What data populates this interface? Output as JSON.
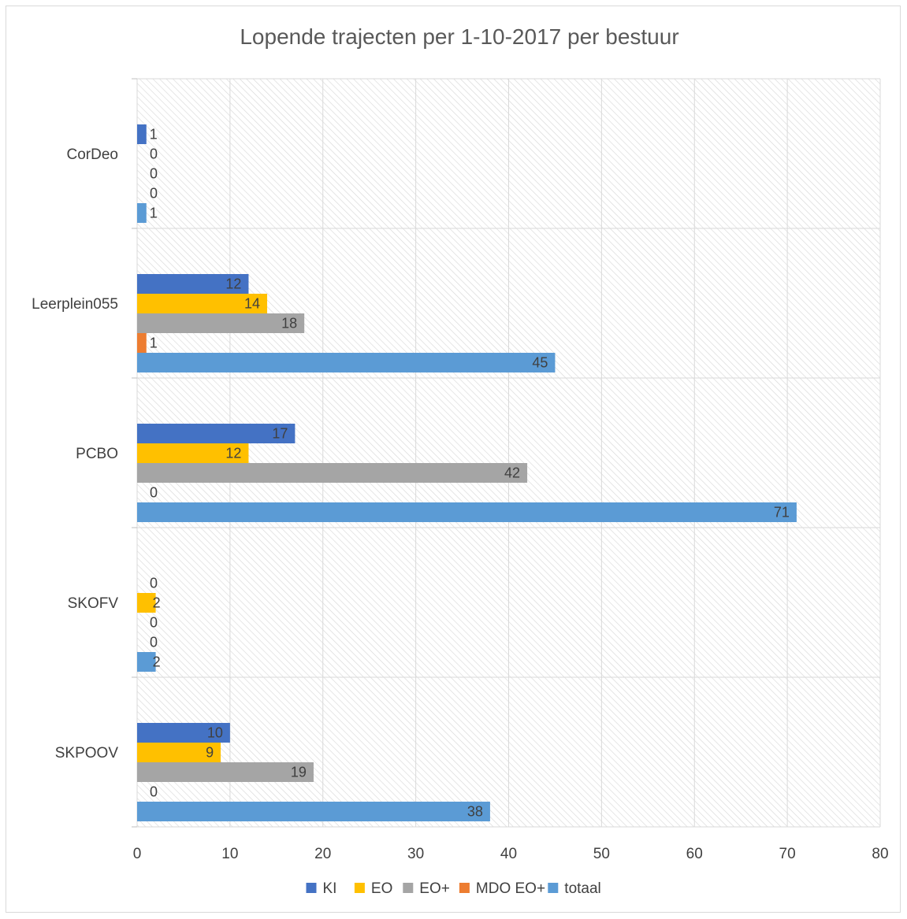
{
  "chart_data": {
    "type": "bar",
    "orientation": "horizontal",
    "title": "Lopende trajecten per 1-10-2017 per bestuur",
    "categories": [
      "CorDeo",
      "Leerplein055",
      "PCBO",
      "SKOFV",
      "SKPOOV"
    ],
    "series": [
      {
        "name": "KI",
        "color": "#4472c4",
        "values": [
          1,
          12,
          17,
          0,
          10
        ]
      },
      {
        "name": "EO",
        "color": "#ffc000",
        "values": [
          0,
          14,
          12,
          2,
          9
        ]
      },
      {
        "name": "EO+",
        "color": "#a5a5a5",
        "values": [
          0,
          18,
          42,
          0,
          19
        ]
      },
      {
        "name": "MDO EO+",
        "color": "#ed7d31",
        "values": [
          0,
          1,
          0,
          0,
          0
        ]
      },
      {
        "name": "totaal",
        "color": "#5b9bd5",
        "values": [
          1,
          45,
          71,
          2,
          38
        ]
      }
    ],
    "xlim": [
      0,
      80
    ],
    "xticks": [
      0,
      10,
      20,
      30,
      40,
      50,
      60,
      70,
      80
    ],
    "grid": true,
    "legend_position": "bottom"
  }
}
